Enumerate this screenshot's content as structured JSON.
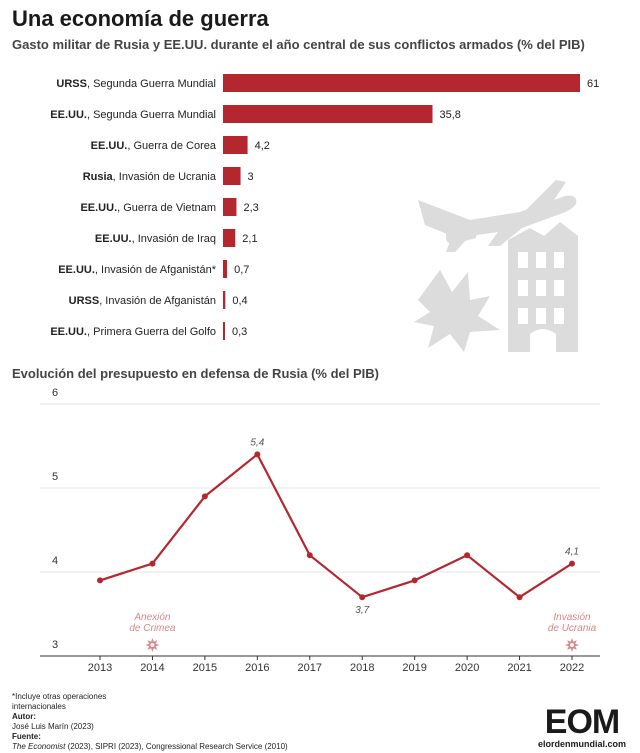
{
  "title": "Una economía de guerra",
  "subtitle": "Gasto militar de Rusia y EE.UU. durante el año central de sus conflictos armados (% del PIB)",
  "line_title": "Evolución del presupuesto en defensa de Rusia (% del PIB)",
  "colors": {
    "accent": "#b5272f",
    "event": "#d9868a",
    "illustration": "#dcdcdc"
  },
  "icons": [
    "plane-icon",
    "bomb-icon",
    "explosion-icon",
    "ruined-building-icon",
    "burst-icon"
  ],
  "chart_data": [
    {
      "type": "bar",
      "orientation": "horizontal",
      "categories": [
        {
          "bold": "URSS",
          "rest": ", Segunda Guerra Mundial"
        },
        {
          "bold": "EE.UU.",
          "rest": ", Segunda Guerra Mundial"
        },
        {
          "bold": "EE.UU.",
          "rest": ", Guerra de Corea"
        },
        {
          "bold": "Rusia",
          "rest": ", Invasión de Ucrania"
        },
        {
          "bold": "EE.UU.",
          "rest": ", Guerra de Vietnam"
        },
        {
          "bold": "EE.UU.",
          "rest": ", Invasión de Iraq"
        },
        {
          "bold": "EE.UU.",
          "rest": ", Invasión de Afganistán*"
        },
        {
          "bold": "URSS",
          "rest": ", Invasión de Afganistán"
        },
        {
          "bold": "EE.UU.",
          "rest": ", Primera Guerra del Golfo"
        }
      ],
      "values": [
        61,
        35.8,
        4.2,
        3,
        2.3,
        2.1,
        0.7,
        0.4,
        0.3
      ],
      "value_labels": [
        "61",
        "35,8",
        "4,2",
        "3",
        "2,3",
        "2,1",
        "0,7",
        "0,4",
        "0,3"
      ]
    },
    {
      "type": "line",
      "x": [
        2013,
        2014,
        2015,
        2016,
        2017,
        2018,
        2019,
        2020,
        2021,
        2022
      ],
      "values": [
        3.9,
        4.1,
        4.9,
        5.4,
        4.2,
        3.7,
        3.9,
        4.2,
        3.7,
        4.1
      ],
      "ylim": [
        3,
        6
      ],
      "yticks": [
        "3",
        "4",
        "5",
        "6"
      ],
      "grid": "horizontal",
      "data_labels": [
        {
          "x": 2016,
          "text": "5,4",
          "pos": "above"
        },
        {
          "x": 2018,
          "text": "3,7",
          "pos": "below"
        },
        {
          "x": 2022,
          "text": "4,1",
          "pos": "above"
        }
      ],
      "annotations": [
        {
          "x": 2014,
          "lines": [
            "Anexión",
            "de Crimea"
          ]
        },
        {
          "x": 2022,
          "lines": [
            "Invasión",
            "de Ucrania"
          ]
        }
      ]
    }
  ],
  "footer": {
    "note_line1": "*Incluye otras operaciones",
    "note_line2": "internacionales",
    "author_label": "Autor:",
    "author": "José Luis Marín  (2023)",
    "source_label": "Fuente:",
    "source_italic": "The Economist",
    "source_rest": " (2023), SIPRI (2023), Congressional Research Service (2010)"
  },
  "logo": {
    "main": "EOM",
    "sub": "elordenmundial.com"
  }
}
